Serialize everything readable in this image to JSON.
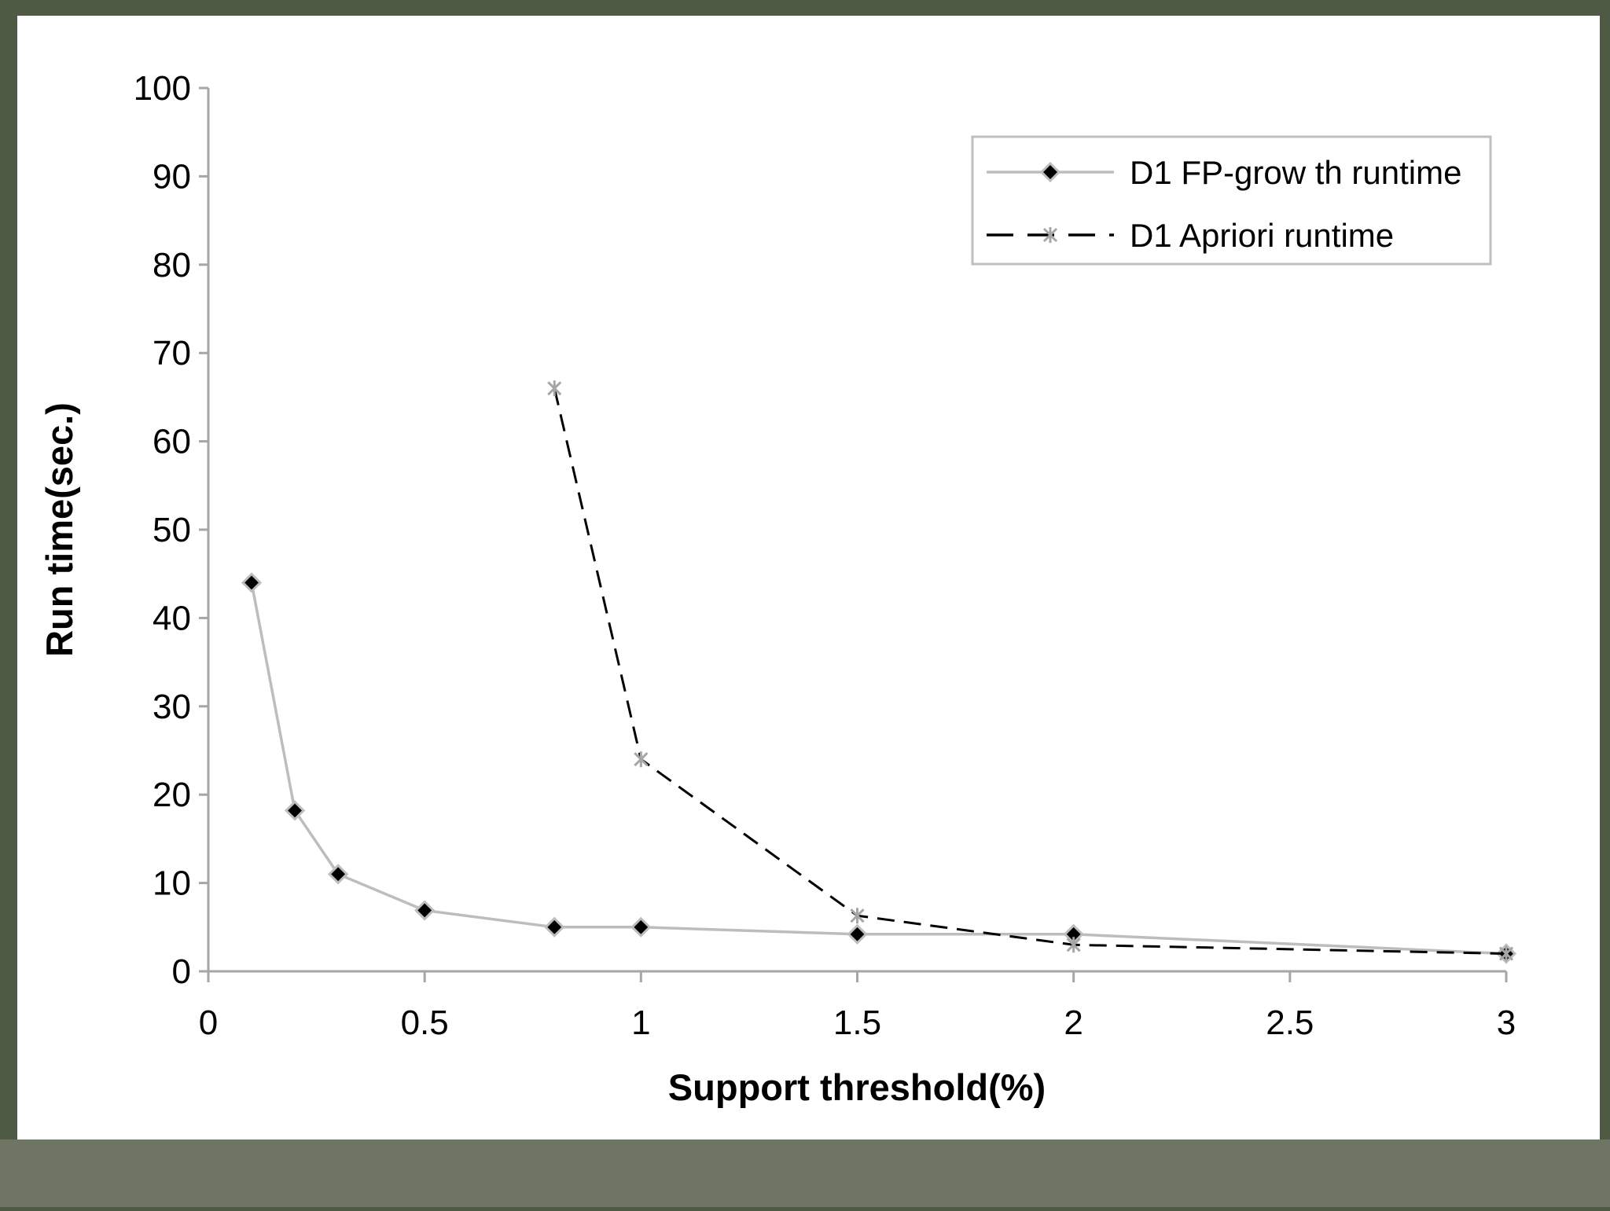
{
  "chart_data": {
    "type": "line",
    "xlabel": "Support threshold(%)",
    "ylabel": "Run time(sec.)",
    "xlim": [
      0,
      3
    ],
    "xticks": [
      0,
      0.5,
      1,
      1.5,
      2,
      2.5,
      3
    ],
    "ylim": [
      0,
      100
    ],
    "yticks": [
      0,
      10,
      20,
      30,
      40,
      50,
      60,
      70,
      80,
      90,
      100
    ],
    "legend": "upper right",
    "series": [
      {
        "name": "D1 FP-grow th runtime",
        "color": "#bdbdbd",
        "marker": "diamond",
        "dash": false,
        "x": [
          0.1,
          0.2,
          0.3,
          0.5,
          0.8,
          1,
          1.5,
          2,
          3
        ],
        "values": [
          44,
          18.2,
          11,
          6.9,
          5,
          5,
          4.2,
          4.2,
          2
        ]
      },
      {
        "name": "D1 Apriori runtime",
        "color": "#000000",
        "marker": "star",
        "dash": true,
        "x": [
          0.8,
          1,
          1.5,
          2,
          3
        ],
        "values": [
          66,
          24,
          6.3,
          3,
          2
        ]
      }
    ]
  }
}
